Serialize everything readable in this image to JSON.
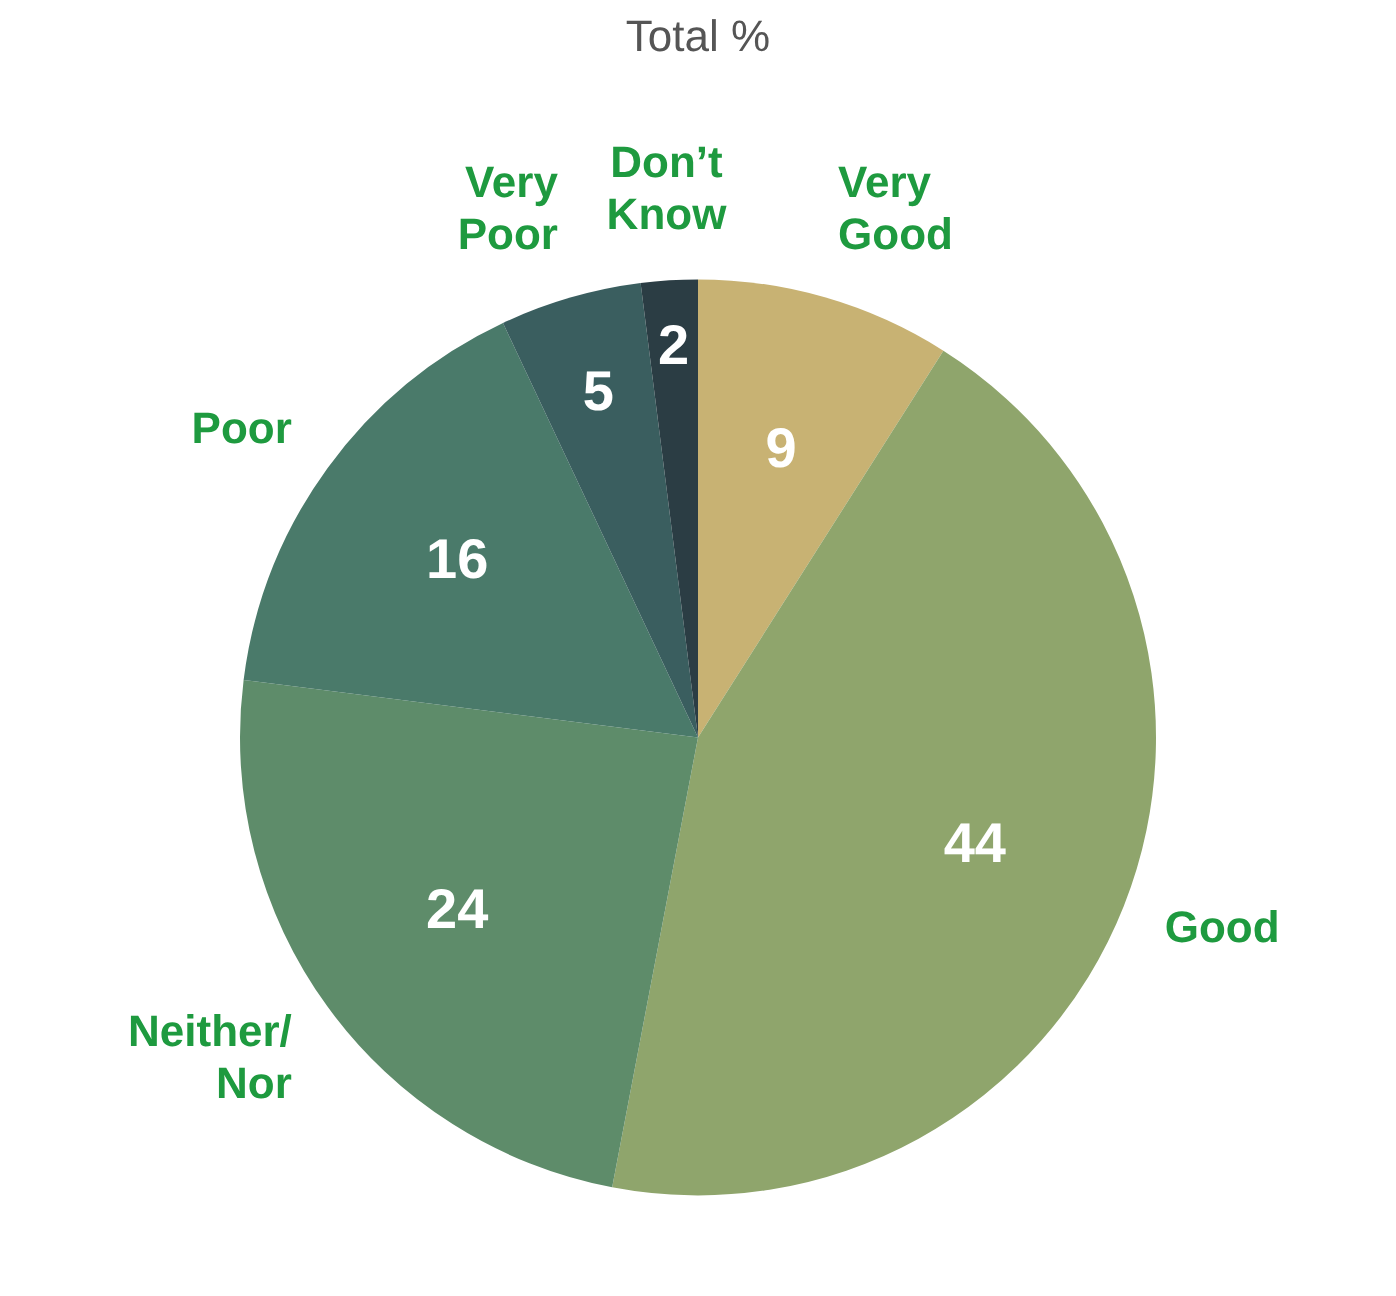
{
  "chart_data": {
    "type": "pie",
    "title": "Total %",
    "categories": [
      "Very Good",
      "Good",
      "Neither/Nor",
      "Poor",
      "Very Poor",
      "Don’t Know"
    ],
    "values": [
      9,
      44,
      24,
      16,
      5,
      2
    ],
    "colors": [
      "#c8b273",
      "#8fa56c",
      "#5e8c6a",
      "#4a7a6a",
      "#3a5e5f",
      "#2b3d44"
    ],
    "data_labels": true,
    "legend": false
  }
}
